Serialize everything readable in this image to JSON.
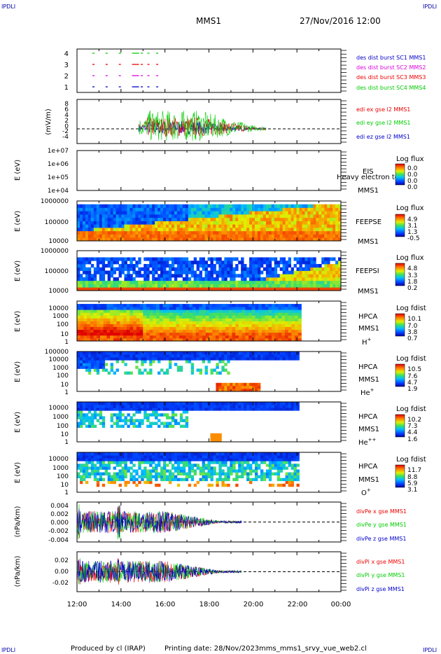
{
  "corners": {
    "tl": "IPDLI",
    "tr": "IPDLI",
    "bl": "IPDLI",
    "br": "IPDLI"
  },
  "header": {
    "mission": "MMS1",
    "date": "27/Nov/2016 12:00"
  },
  "footer": {
    "produced": "Produced by cl (IRAP)",
    "printing": "Printing date: 28/Nov/2023",
    "file": "mms_mms1_srvy_vue_web2.cl"
  },
  "colors": {
    "red": "#ee0000",
    "green": "#00cc00",
    "blue": "#0000cc",
    "magenta": "#dd00dd"
  },
  "time_axis": {
    "labels": [
      "12:00",
      "14:00",
      "16:00",
      "18:00",
      "20:00",
      "22:00",
      "00:00"
    ]
  },
  "chart_data": [
    {
      "type": "scatter",
      "id": "burst",
      "yticks": [
        "1",
        "2",
        "3",
        "4"
      ],
      "legend": [
        {
          "label": "des dist burst SC1 MMS1",
          "color": "#0000cc"
        },
        {
          "label": "des dist burst SC2 MMS2",
          "color": "#dd00dd"
        },
        {
          "label": "des dist burst SC3 MMS3",
          "color": "#ee0000"
        },
        {
          "label": "des dist burst SC4 MMS4",
          "color": "#00cc00"
        }
      ],
      "marks_hours": [
        12.7,
        13.3,
        13.9,
        14.5,
        14.9,
        15.2,
        15.6
      ]
    },
    {
      "type": "line",
      "id": "efield",
      "ylabel": "(mV/m)",
      "yticks": [
        "-4",
        "-2",
        "0",
        "2",
        "4",
        "6",
        "8"
      ],
      "ylim": [
        -4,
        8
      ],
      "series": [
        {
          "name": "edi ex gse l2 MMS1",
          "color": "#ee0000"
        },
        {
          "name": "edi ey gse l2 MMS1",
          "color": "#00cc00"
        },
        {
          "name": "edi ez gse l2 MMS1",
          "color": "#0000cc"
        }
      ],
      "x_range_hours": [
        14.8,
        20.6
      ]
    },
    {
      "type": "heatmap",
      "id": "eis",
      "ylabel": "E (eV)",
      "yticks": [
        "1e+04",
        "1e+05",
        "1e+06",
        "1e+07"
      ],
      "instrument": "EIS",
      "species": "Heavy electron to",
      "sc": "MMS1",
      "cb_title": "Log flux",
      "cb_values": [
        "0.0",
        "0.0",
        "0.0",
        "0.0"
      ]
    },
    {
      "type": "heatmap",
      "id": "feepse",
      "ylabel": "E (eV)",
      "yticks": [
        "10000",
        "100000",
        "1000000"
      ],
      "instrument": "FEEPSE",
      "sc": "MMS1",
      "cb_title": "Log flux",
      "cb_values": [
        "4.9",
        "3.1",
        "1.3",
        "-0.5"
      ]
    },
    {
      "type": "heatmap",
      "id": "feepsi",
      "ylabel": "E (eV)",
      "yticks": [
        "10000",
        "100000",
        "1000000"
      ],
      "instrument": "FEEPSI",
      "sc": "MMS1",
      "cb_title": "Log flux",
      "cb_values": [
        "4.8",
        "3.3",
        "1.8",
        "0.2"
      ]
    },
    {
      "type": "heatmap",
      "id": "hpca_h",
      "ylabel": "E (eV)",
      "yticks": [
        "1",
        "10",
        "100",
        "1000",
        "10000"
      ],
      "instrument": "HPCA",
      "sc": "MMS1",
      "ion": "H",
      "ion_sup": "+",
      "cb_title": "Log fdist",
      "cb_values": [
        "10.1",
        "7.0",
        "3.8",
        "0.7"
      ]
    },
    {
      "type": "heatmap",
      "id": "hpca_he1",
      "ylabel": "E (eV)",
      "yticks": [
        "1",
        "10",
        "100",
        "1000",
        "10000",
        "100000"
      ],
      "instrument": "HPCA",
      "sc": "MMS1",
      "ion": "He",
      "ion_sup": "+",
      "cb_title": "Log fdist",
      "cb_values": [
        "10.5",
        "7.6",
        "4.7",
        "1.9"
      ]
    },
    {
      "type": "heatmap",
      "id": "hpca_he2",
      "ylabel": "E (eV)",
      "yticks": [
        "1",
        "10",
        "100",
        "1000",
        "10000"
      ],
      "instrument": "HPCA",
      "sc": "MMS1",
      "ion": "He",
      "ion_sup": "++",
      "cb_title": "Log fdist",
      "cb_values": [
        "10.2",
        "7.3",
        "4.4",
        "1.6"
      ]
    },
    {
      "type": "heatmap",
      "id": "hpca_o",
      "ylabel": "E (eV)",
      "yticks": [
        "1",
        "10",
        "100",
        "1000",
        "10000"
      ],
      "instrument": "HPCA",
      "sc": "MMS1",
      "ion": "O",
      "ion_sup": "+",
      "cb_title": "Log fdist",
      "cb_values": [
        "11.7",
        "8.8",
        "5.9",
        "3.1"
      ]
    },
    {
      "type": "line",
      "id": "divpe",
      "ylabel": "(nPa/km)",
      "yticks": [
        "-0.004",
        "-0.002",
        "0.000",
        "0.002",
        "0.004"
      ],
      "ylim": [
        -0.0045,
        0.0045
      ],
      "series": [
        {
          "name": "divPe x gse MMS1",
          "color": "#ee0000"
        },
        {
          "name": "divPe y gse MMS1",
          "color": "#00cc00"
        },
        {
          "name": "divPe z gse MMS1",
          "color": "#0000cc"
        }
      ],
      "x_range_hours": [
        12.0,
        19.5
      ]
    },
    {
      "type": "line",
      "id": "divpi",
      "ylabel": "(nPa/km)",
      "yticks": [
        "-0.02",
        "0.00",
        "0.02"
      ],
      "ylim": [
        -0.03,
        0.03
      ],
      "series": [
        {
          "name": "divPi x gse MMS1",
          "color": "#ee0000"
        },
        {
          "name": "divPi y gse MMS1",
          "color": "#00cc00"
        },
        {
          "name": "divPi z gse MMS1",
          "color": "#0000cc"
        }
      ],
      "x_range_hours": [
        12.0,
        19.5
      ]
    }
  ]
}
